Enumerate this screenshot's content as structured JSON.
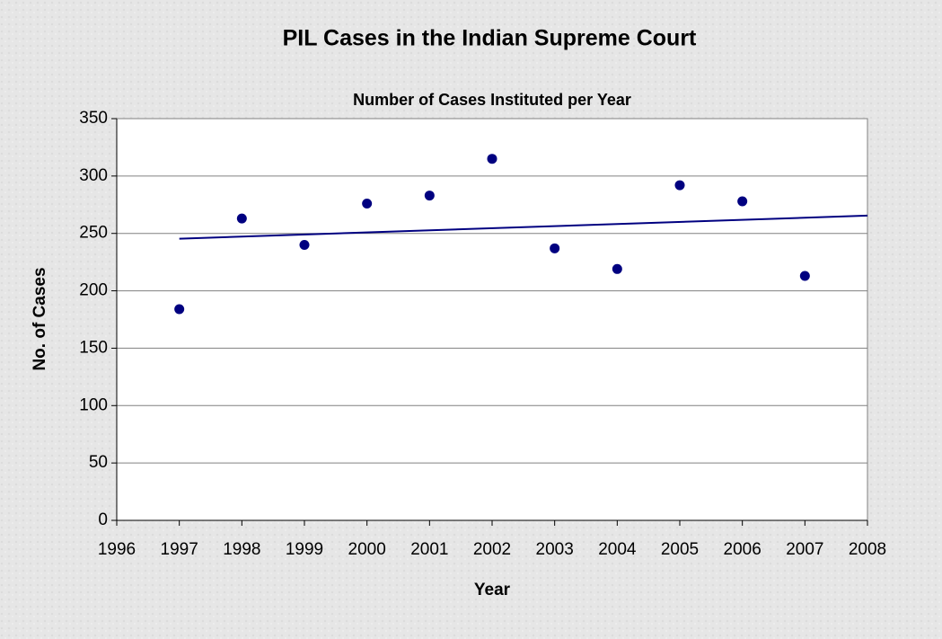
{
  "chart_data": {
    "type": "scatter",
    "title": "PIL Cases in the Indian Supreme Court",
    "subtitle": "Number of Cases Instituted per Year",
    "x_label": "Year",
    "y_label": "No. of Cases",
    "x": [
      1997,
      1998,
      1999,
      2000,
      2001,
      2002,
      2003,
      2004,
      2005,
      2006,
      2007
    ],
    "values": [
      184,
      263,
      240,
      276,
      283,
      315,
      237,
      219,
      292,
      278,
      213
    ],
    "color": "#000080",
    "trendline": true,
    "xlim": [
      1996,
      2008
    ],
    "xticks": [
      1996,
      1997,
      1998,
      1999,
      2000,
      2001,
      2002,
      2003,
      2004,
      2005,
      2006,
      2007,
      2008
    ],
    "ylim": [
      0,
      350
    ],
    "yticks": [
      0,
      50,
      100,
      150,
      200,
      250,
      300,
      350
    ],
    "grid": true
  }
}
